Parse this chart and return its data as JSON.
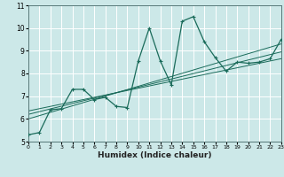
{
  "title": "",
  "xlabel": "Humidex (Indice chaleur)",
  "ylabel": "",
  "bg_color": "#cce8e8",
  "grid_color": "#ffffff",
  "line_color": "#1a6b5a",
  "x_min": 0,
  "x_max": 23,
  "y_min": 5,
  "y_max": 11,
  "x_ticks": [
    0,
    1,
    2,
    3,
    4,
    5,
    6,
    7,
    8,
    9,
    10,
    11,
    12,
    13,
    14,
    15,
    16,
    17,
    18,
    19,
    20,
    21,
    22,
    23
  ],
  "y_ticks": [
    5,
    6,
    7,
    8,
    9,
    10,
    11
  ],
  "curve1_x": [
    0,
    1,
    2,
    3,
    4,
    5,
    6,
    7,
    8,
    9,
    10,
    11,
    12,
    13,
    14,
    15,
    16,
    17,
    18,
    19,
    20,
    21,
    22,
    23
  ],
  "curve1_y": [
    5.3,
    5.4,
    6.4,
    6.45,
    7.3,
    7.3,
    6.85,
    6.95,
    6.55,
    6.5,
    8.55,
    10.0,
    8.55,
    7.5,
    10.3,
    10.5,
    9.4,
    8.7,
    8.1,
    8.5,
    8.45,
    8.5,
    8.65,
    9.5
  ],
  "line2_x": [
    0,
    23
  ],
  "line2_y": [
    6.0,
    9.3
  ],
  "line3_x": [
    0,
    23
  ],
  "line3_y": [
    6.2,
    8.95
  ],
  "line4_x": [
    0,
    23
  ],
  "line4_y": [
    6.35,
    8.65
  ]
}
